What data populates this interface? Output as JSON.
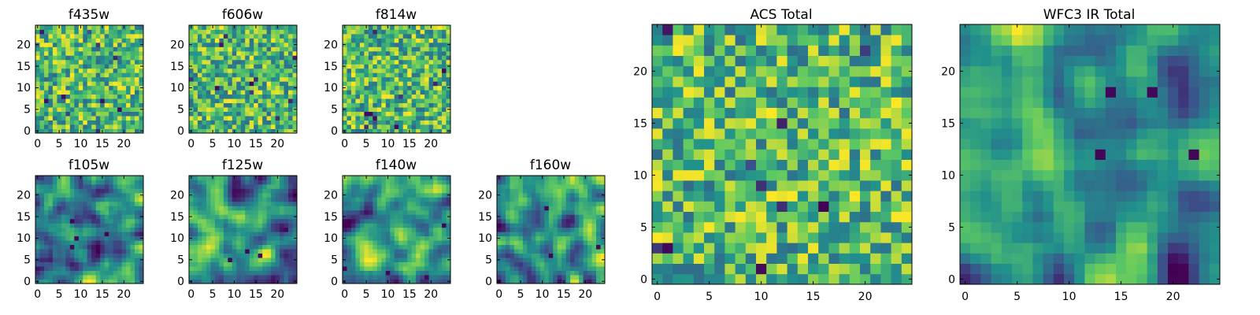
{
  "figure": {
    "colormap": [
      "#440154",
      "#3b528b",
      "#21918c",
      "#5ec962",
      "#fde725"
    ]
  },
  "chart_data": [
    {
      "type": "heatmap",
      "title": "f435w",
      "grid_size": 25,
      "xticks": [
        "0",
        "5",
        "10",
        "15",
        "20"
      ],
      "yticks": [
        "0",
        "5",
        "10",
        "15",
        "20"
      ],
      "xlim": [
        -0.5,
        24.5
      ],
      "ylim": [
        -0.5,
        24.5
      ],
      "texture": "noise",
      "seed": 11
    },
    {
      "type": "heatmap",
      "title": "f606w",
      "grid_size": 25,
      "xticks": [
        "0",
        "5",
        "10",
        "15",
        "20"
      ],
      "yticks": [
        "0",
        "5",
        "10",
        "15",
        "20"
      ],
      "xlim": [
        -0.5,
        24.5
      ],
      "ylim": [
        -0.5,
        24.5
      ],
      "texture": "noise",
      "seed": 23
    },
    {
      "type": "heatmap",
      "title": "f814w",
      "grid_size": 25,
      "xticks": [
        "0",
        "5",
        "10",
        "15",
        "20"
      ],
      "yticks": [
        "0",
        "5",
        "10",
        "15",
        "20"
      ],
      "xlim": [
        -0.5,
        24.5
      ],
      "ylim": [
        -0.5,
        24.5
      ],
      "texture": "noise",
      "seed": 37
    },
    {
      "type": "heatmap",
      "title": "f105w",
      "grid_size": 25,
      "xticks": [
        "0",
        "5",
        "10",
        "15",
        "20"
      ],
      "yticks": [
        "0",
        "5",
        "10",
        "15",
        "20"
      ],
      "xlim": [
        -0.5,
        24.5
      ],
      "ylim": [
        -0.5,
        24.5
      ],
      "texture": "smooth",
      "seed": 41
    },
    {
      "type": "heatmap",
      "title": "f125w",
      "grid_size": 25,
      "xticks": [
        "0",
        "5",
        "10",
        "15",
        "20"
      ],
      "yticks": [
        "0",
        "5",
        "10",
        "15",
        "20"
      ],
      "xlim": [
        -0.5,
        24.5
      ],
      "ylim": [
        -0.5,
        24.5
      ],
      "texture": "smooth",
      "seed": 53
    },
    {
      "type": "heatmap",
      "title": "f140w",
      "grid_size": 25,
      "xticks": [
        "0",
        "5",
        "10",
        "15",
        "20"
      ],
      "yticks": [
        "0",
        "5",
        "10",
        "15",
        "20"
      ],
      "xlim": [
        -0.5,
        24.5
      ],
      "ylim": [
        -0.5,
        24.5
      ],
      "texture": "smooth",
      "seed": 67
    },
    {
      "type": "heatmap",
      "title": "f160w",
      "grid_size": 25,
      "xticks": [
        "0",
        "5",
        "10",
        "15",
        "20"
      ],
      "yticks": [
        "0",
        "5",
        "10",
        "15",
        "20"
      ],
      "xlim": [
        -0.5,
        24.5
      ],
      "ylim": [
        -0.5,
        24.5
      ],
      "texture": "smooth",
      "seed": 79
    },
    {
      "type": "heatmap",
      "title": "ACS Total",
      "grid_size": 25,
      "xticks": [
        "0",
        "5",
        "10",
        "15",
        "20"
      ],
      "yticks": [
        "0",
        "5",
        "10",
        "15",
        "20"
      ],
      "xlim": [
        -0.5,
        24.5
      ],
      "ylim": [
        -0.5,
        24.5
      ],
      "texture": "noise",
      "seed": 97
    },
    {
      "type": "heatmap",
      "title": "WFC3 IR Total",
      "grid_size": 25,
      "xticks": [
        "0",
        "5",
        "10",
        "15",
        "20"
      ],
      "yticks": [
        "0",
        "5",
        "10",
        "15",
        "20"
      ],
      "xlim": [
        -0.5,
        24.5
      ],
      "ylim": [
        -0.5,
        24.5
      ],
      "texture": "smooth",
      "seed": 131
    }
  ]
}
